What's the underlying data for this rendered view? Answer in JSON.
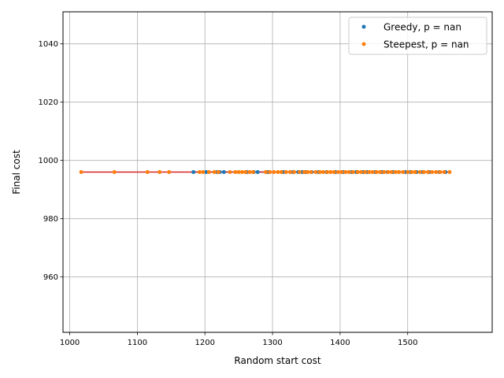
{
  "chart_data": {
    "type": "scatter",
    "title": "",
    "xlabel": "Random start cost",
    "ylabel": "Final cost",
    "xlim": [
      990,
      1625
    ],
    "ylim": [
      941,
      1051
    ],
    "xticks": [
      1000,
      1100,
      1200,
      1300,
      1400,
      1500
    ],
    "yticks": [
      960,
      980,
      1000,
      1020,
      1040
    ],
    "grid": true,
    "legend_position": "top-right",
    "series": [
      {
        "name": "Greedy, p = nan",
        "color": "#1f77b4",
        "x": [
          1183,
          1202,
          1218,
          1222,
          1228,
          1262,
          1272,
          1278,
          1293,
          1316,
          1330,
          1338,
          1344,
          1349,
          1358,
          1368,
          1380,
          1393,
          1404,
          1417,
          1424,
          1434,
          1440,
          1452,
          1462,
          1470,
          1478,
          1487,
          1497,
          1504,
          1513,
          1522,
          1532,
          1547,
          1556
        ],
        "y": [
          996,
          996,
          996,
          996,
          996,
          996,
          996,
          996,
          996,
          996,
          996,
          996,
          996,
          996,
          996,
          996,
          996,
          996,
          996,
          996,
          996,
          996,
          996,
          996,
          996,
          996,
          996,
          996,
          996,
          996,
          996,
          996,
          996,
          996,
          996
        ]
      },
      {
        "name": "Steepest, p = nan",
        "color": "#ff7f0e",
        "x": [
          1017,
          1066,
          1115,
          1133,
          1147,
          1192,
          1197,
          1206,
          1214,
          1220,
          1237,
          1245,
          1250,
          1255,
          1260,
          1266,
          1271,
          1290,
          1296,
          1302,
          1308,
          1313,
          1320,
          1326,
          1332,
          1340,
          1347,
          1352,
          1357,
          1364,
          1370,
          1375,
          1381,
          1386,
          1391,
          1397,
          1402,
          1408,
          1413,
          1419,
          1426,
          1431,
          1437,
          1443,
          1448,
          1454,
          1459,
          1465,
          1471,
          1476,
          1482,
          1487,
          1493,
          1500,
          1506,
          1511,
          1518,
          1524,
          1530,
          1536,
          1542,
          1548,
          1554,
          1562
        ],
        "y": [
          996,
          996,
          996,
          996,
          996,
          996,
          996,
          996,
          996,
          996,
          996,
          996,
          996,
          996,
          996,
          996,
          996,
          996,
          996,
          996,
          996,
          996,
          996,
          996,
          996,
          996,
          996,
          996,
          996,
          996,
          996,
          996,
          996,
          996,
          996,
          996,
          996,
          996,
          996,
          996,
          996,
          996,
          996,
          996,
          996,
          996,
          996,
          996,
          996,
          996,
          996,
          996,
          996,
          996,
          996,
          996,
          996,
          996,
          996,
          996,
          996,
          996,
          996,
          996
        ]
      }
    ],
    "fit_lines": [
      {
        "color": "#1f77b4",
        "x": [
          1183,
          1556
        ],
        "y": [
          996,
          996
        ]
      },
      {
        "color": "#d62728",
        "x": [
          1017,
          1562
        ],
        "y": [
          996,
          996
        ]
      }
    ]
  }
}
